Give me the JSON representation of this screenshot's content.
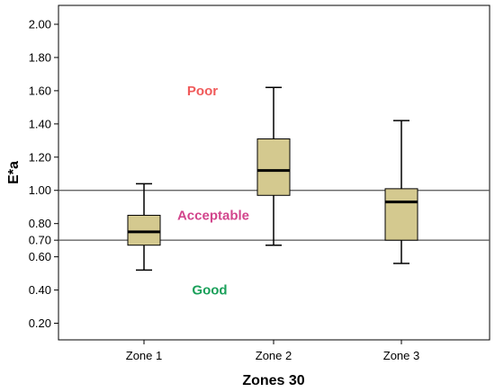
{
  "chart_data": {
    "type": "boxplot",
    "xlabel": "Zones 30",
    "ylabel": "E*a",
    "ylim": [
      0.1,
      2.08
    ],
    "y_ticks": [
      "0.20",
      "0.40",
      "0.60",
      "0.70",
      "0.80",
      "1.00",
      "1.20",
      "1.40",
      "1.60",
      "1.80",
      "2.00"
    ],
    "y_tick_values": [
      0.2,
      0.4,
      0.6,
      0.7,
      0.8,
      1.0,
      1.2,
      1.4,
      1.6,
      1.8,
      2.0
    ],
    "categories": [
      "Zone 1",
      "Zone 2",
      "Zone 3"
    ],
    "boxes": [
      {
        "category": "Zone 1",
        "min": 0.52,
        "q1": 0.67,
        "median": 0.75,
        "q3": 0.85,
        "max": 1.04
      },
      {
        "category": "Zone 2",
        "min": 0.67,
        "q1": 0.97,
        "median": 1.12,
        "q3": 1.31,
        "max": 1.62
      },
      {
        "category": "Zone 3",
        "min": 0.56,
        "q1": 0.7,
        "median": 0.93,
        "q3": 1.01,
        "max": 1.42
      }
    ],
    "reference_lines": [
      1.0,
      0.7
    ],
    "zone_labels": [
      {
        "text": "Poor",
        "y": 1.6,
        "color": "#f05a5a"
      },
      {
        "text": "Acceptable",
        "y": 0.85,
        "color": "#d2458c"
      },
      {
        "text": "Good",
        "y": 0.4,
        "color": "#1aa05a"
      }
    ],
    "box_fill": "#d4c98f",
    "box_stroke": "#000000",
    "grid": false
  }
}
